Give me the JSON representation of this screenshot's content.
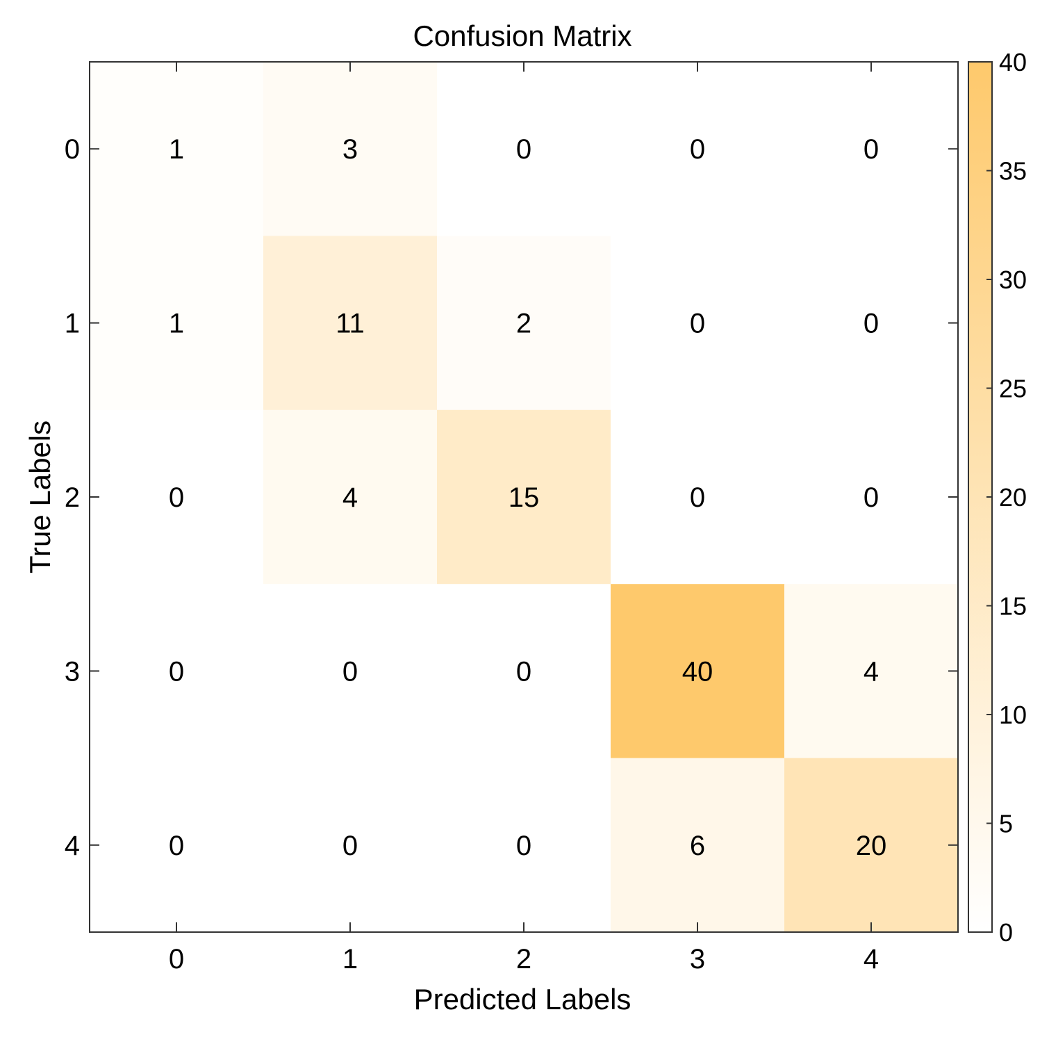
{
  "chart_data": {
    "type": "heatmap",
    "title": "Confusion Matrix",
    "xlabel": "Predicted Labels",
    "ylabel": "True Labels",
    "x_categories": [
      "0",
      "1",
      "2",
      "3",
      "4"
    ],
    "y_categories": [
      "0",
      "1",
      "2",
      "3",
      "4"
    ],
    "matrix": [
      [
        1,
        3,
        0,
        0,
        0
      ],
      [
        1,
        11,
        2,
        0,
        0
      ],
      [
        0,
        4,
        15,
        0,
        0
      ],
      [
        0,
        0,
        0,
        40,
        4
      ],
      [
        0,
        0,
        0,
        6,
        20
      ]
    ],
    "colorbar": {
      "min": 0,
      "max": 40,
      "ticks": [
        0,
        5,
        10,
        15,
        20,
        25,
        30,
        35,
        40
      ],
      "color_low": "#ffffff",
      "color_high": "#fec96c"
    }
  }
}
